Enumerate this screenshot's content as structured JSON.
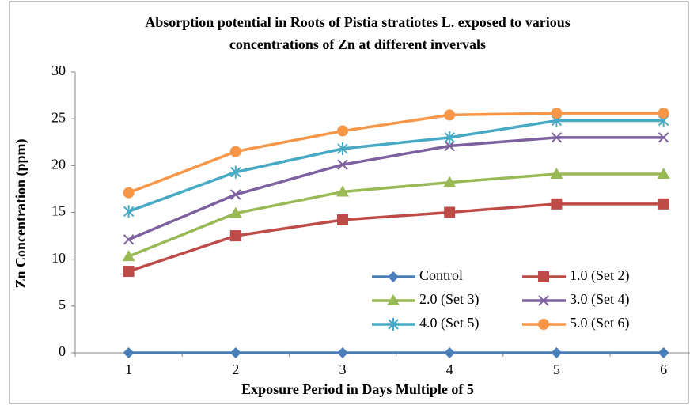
{
  "chart_data": {
    "type": "line",
    "title": [
      "Absorption potential in Roots of Pistia stratiotes L. exposed to various",
      "concentrations of Zn at different invervals"
    ],
    "x_label": "Exposure Period in Days Multiple of 5",
    "y_label": "Zn Concentration (ppm)",
    "categories": [
      "1",
      "2",
      "3",
      "4",
      "5",
      "6"
    ],
    "ylim": [
      0,
      30
    ],
    "yticks": [
      0,
      5,
      10,
      15,
      20,
      25,
      30
    ],
    "grid": false,
    "legend": "lower right",
    "series": [
      {
        "name": "Control",
        "color": "#4a7ebb",
        "marker": "diamond",
        "values": [
          0,
          0,
          0,
          0,
          0,
          0
        ]
      },
      {
        "name": "1.0 (Set 2)",
        "color": "#be4b48",
        "marker": "square",
        "values": [
          8.7,
          12.5,
          14.2,
          15.0,
          15.9,
          15.9
        ]
      },
      {
        "name": "2.0 (Set 3)",
        "color": "#98b954",
        "marker": "triangle",
        "values": [
          10.3,
          14.9,
          17.2,
          18.2,
          19.1,
          19.1
        ]
      },
      {
        "name": "3.0 (Set 4)",
        "color": "#7d60a0",
        "marker": "x",
        "values": [
          12.1,
          16.9,
          20.1,
          22.1,
          23.0,
          23.0
        ]
      },
      {
        "name": "4.0 (Set 5)",
        "color": "#46aac5",
        "marker": "star",
        "values": [
          15.1,
          19.3,
          21.8,
          23.0,
          24.8,
          24.8
        ]
      },
      {
        "name": "5.0 (Set 6)",
        "color": "#f79646",
        "marker": "circle",
        "values": [
          17.1,
          21.5,
          23.7,
          25.4,
          25.6,
          25.6
        ]
      }
    ]
  }
}
